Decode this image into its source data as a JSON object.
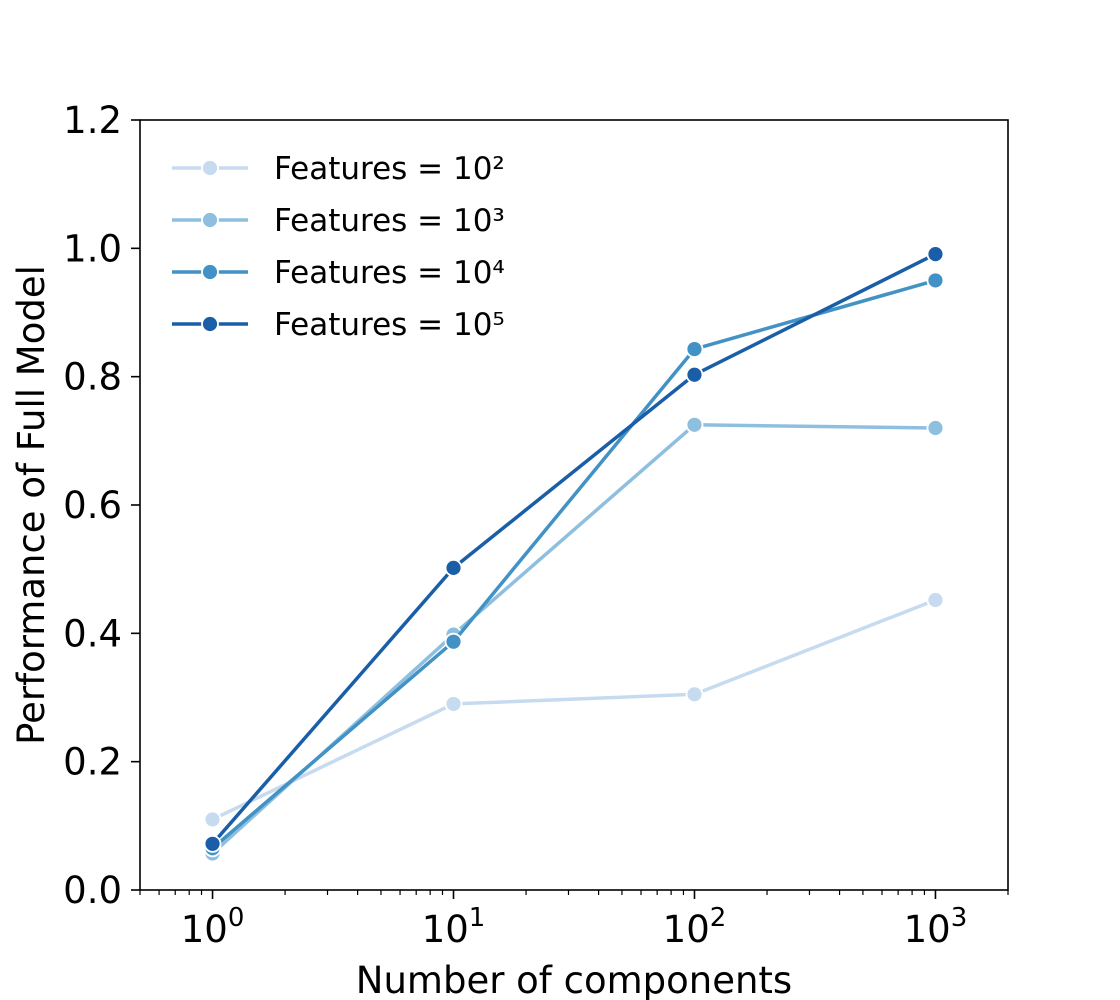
{
  "chart_data": {
    "type": "line",
    "title": "",
    "xlabel": "Number of components",
    "ylabel": "Performance of Full Model",
    "x_scale": "log",
    "x": [
      1,
      10,
      100,
      1000
    ],
    "xlim": [
      0.5,
      2000
    ],
    "ylim": [
      0.0,
      1.2
    ],
    "x_ticks": [
      {
        "value": 1,
        "base": "10",
        "exp": "0"
      },
      {
        "value": 10,
        "base": "10",
        "exp": "1"
      },
      {
        "value": 100,
        "base": "10",
        "exp": "2"
      },
      {
        "value": 1000,
        "base": "10",
        "exp": "3"
      }
    ],
    "y_ticks": [
      {
        "value": 0.0,
        "label": "0.0"
      },
      {
        "value": 0.2,
        "label": "0.2"
      },
      {
        "value": 0.4,
        "label": "0.4"
      },
      {
        "value": 0.6,
        "label": "0.6"
      },
      {
        "value": 0.8,
        "label": "0.8"
      },
      {
        "value": 1.0,
        "label": "1.0"
      },
      {
        "value": 1.2,
        "label": "1.2"
      }
    ],
    "grid": false,
    "legend_position": "top-left",
    "series": [
      {
        "name": "Features = 10²",
        "color": "#c6dbef",
        "values": [
          0.11,
          0.29,
          0.305,
          0.452
        ]
      },
      {
        "name": "Features = 10³",
        "color": "#8fbfdf",
        "values": [
          0.057,
          0.398,
          0.725,
          0.72
        ]
      },
      {
        "name": "Features = 10⁴",
        "color": "#4292c6",
        "values": [
          0.065,
          0.387,
          0.843,
          0.95
        ]
      },
      {
        "name": "Features = 10⁵",
        "color": "#1a5ea8",
        "values": [
          0.072,
          0.502,
          0.803,
          0.991
        ]
      }
    ]
  }
}
